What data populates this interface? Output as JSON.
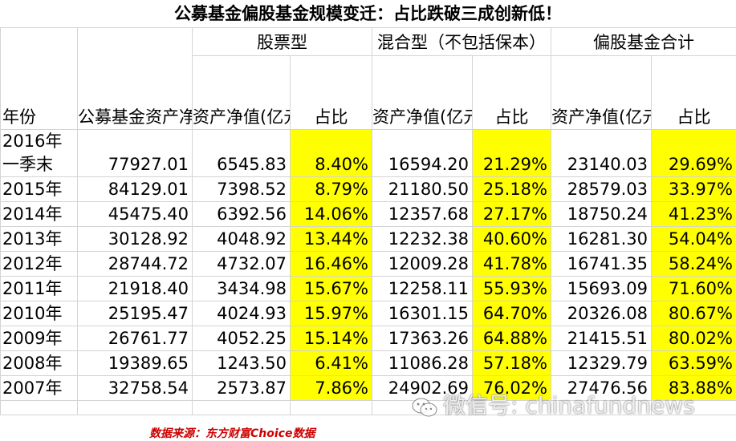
{
  "title": "公募基金偏股基金规模变迁：占比跌破三成创新低！",
  "headers": {
    "year": "年份",
    "total_nav": "公募基金资产净值(亿元)",
    "group_stock": "股票型",
    "group_mixed": "混合型（不包括保本）",
    "group_equity_total": "偏股基金合计",
    "nav": "资产净值(亿元)",
    "ratio": "占比"
  },
  "rows": [
    {
      "year_a": "2016年",
      "year_b": "一季末",
      "total": "77927.01",
      "stock_nav": "6545.83",
      "stock_ratio": "8.40%",
      "mixed_nav": "16594.20",
      "mixed_ratio": "21.29%",
      "eq_nav": "23140.03",
      "eq_ratio": "29.69%"
    },
    {
      "year": "2015年",
      "total": "84129.01",
      "stock_nav": "7398.52",
      "stock_ratio": "8.79%",
      "mixed_nav": "21180.50",
      "mixed_ratio": "25.18%",
      "eq_nav": "28579.03",
      "eq_ratio": "33.97%"
    },
    {
      "year": "2014年",
      "total": "45475.40",
      "stock_nav": "6392.56",
      "stock_ratio": "14.06%",
      "mixed_nav": "12357.68",
      "mixed_ratio": "27.17%",
      "eq_nav": "18750.24",
      "eq_ratio": "41.23%"
    },
    {
      "year": "2013年",
      "total": "30128.92",
      "stock_nav": "4048.92",
      "stock_ratio": "13.44%",
      "mixed_nav": "12232.38",
      "mixed_ratio": "40.60%",
      "eq_nav": "16281.30",
      "eq_ratio": "54.04%"
    },
    {
      "year": "2012年",
      "total": "28744.72",
      "stock_nav": "4732.07",
      "stock_ratio": "16.46%",
      "mixed_nav": "12009.28",
      "mixed_ratio": "41.78%",
      "eq_nav": "16741.35",
      "eq_ratio": "58.24%"
    },
    {
      "year": "2011年",
      "total": "21918.40",
      "stock_nav": "3434.98",
      "stock_ratio": "15.67%",
      "mixed_nav": "12258.11",
      "mixed_ratio": "55.93%",
      "eq_nav": "15693.09",
      "eq_ratio": "71.60%"
    },
    {
      "year": "2010年",
      "total": "25195.47",
      "stock_nav": "4024.93",
      "stock_ratio": "15.97%",
      "mixed_nav": "16301.15",
      "mixed_ratio": "64.70%",
      "eq_nav": "20326.08",
      "eq_ratio": "80.67%"
    },
    {
      "year": "2009年",
      "total": "26761.77",
      "stock_nav": "4052.25",
      "stock_ratio": "15.14%",
      "mixed_nav": "17363.26",
      "mixed_ratio": "64.88%",
      "eq_nav": "21415.51",
      "eq_ratio": "80.02%"
    },
    {
      "year": "2008年",
      "total": "19389.65",
      "stock_nav": "1243.50",
      "stock_ratio": "6.41%",
      "mixed_nav": "11086.28",
      "mixed_ratio": "57.18%",
      "eq_nav": "12329.79",
      "eq_ratio": "63.59%"
    },
    {
      "year": "2007年",
      "total": "32758.54",
      "stock_nav": "2573.87",
      "stock_ratio": "7.86%",
      "mixed_nav": "24902.69",
      "mixed_ratio": "76.02%",
      "eq_nav": "27476.56",
      "eq_ratio": "83.88%"
    }
  ],
  "source": "数据来源：东方财富Choice数据",
  "watermark": "微信号: chinafundnews",
  "colors": {
    "highlight": "#ffff00",
    "source_text": "#cc0000",
    "grid": "#d4d4d4"
  }
}
